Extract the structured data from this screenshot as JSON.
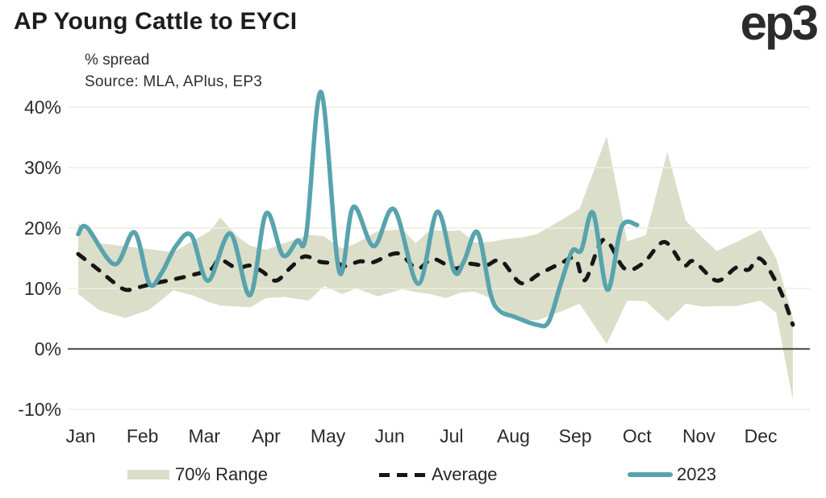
{
  "header": {
    "title": "AP Young Cattle to EYCI",
    "logo": "ep3"
  },
  "chart_data": {
    "type": "line",
    "title": "AP Young Cattle to EYCI",
    "subtitle": "% spread",
    "source": "Source: MLA, APlus, EP3",
    "legend_position": "bottom",
    "grid": true,
    "colors": {
      "band": "#dbdec9",
      "average": "#161616",
      "y2023": "#58a3ad",
      "gridline": "#efeee0",
      "zeroline": "#58585a"
    },
    "x_axis": {
      "categories": [
        "Jan",
        "Feb",
        "Mar",
        "Apr",
        "May",
        "Jun",
        "Jul",
        "Aug",
        "Sep",
        "Oct",
        "Nov",
        "Dec"
      ]
    },
    "y_axis": {
      "unit": "%",
      "min": -10,
      "max": 40,
      "tick_values": [
        40,
        30,
        20,
        10,
        0,
        -10
      ],
      "tick_labels": [
        "40%",
        "30%",
        "20%",
        "10%",
        "0%",
        "-10%"
      ]
    },
    "legend": [
      {
        "label": "70% Range",
        "type": "band"
      },
      {
        "label": "Average",
        "type": "dashed-line"
      },
      {
        "label": "2023",
        "type": "line"
      }
    ],
    "series": [
      {
        "name": "70% Range",
        "type": "band",
        "unit_x": "months (0 = Jan)",
        "points": [
          {
            "x": -0.04,
            "low": 9.1,
            "high": 20.8
          },
          {
            "x": 0.3,
            "low": 6.4,
            "high": 17.5
          },
          {
            "x": 0.72,
            "low": 5.1,
            "high": 17.0
          },
          {
            "x": 1.11,
            "low": 6.5,
            "high": 16.5
          },
          {
            "x": 1.5,
            "low": 9.7,
            "high": 16.0
          },
          {
            "x": 1.83,
            "low": 8.8,
            "high": 18.0
          },
          {
            "x": 2.09,
            "low": 7.7,
            "high": 19.5
          },
          {
            "x": 2.26,
            "low": 7.2,
            "high": 21.7
          },
          {
            "x": 2.55,
            "low": 7.0,
            "high": 18.5
          },
          {
            "x": 2.74,
            "low": 6.9,
            "high": 17.1
          },
          {
            "x": 3.0,
            "low": 8.4,
            "high": 16.4
          },
          {
            "x": 3.29,
            "low": 8.6,
            "high": 17.5
          },
          {
            "x": 3.69,
            "low": 8.0,
            "high": 18.9
          },
          {
            "x": 3.94,
            "low": 10.4,
            "high": 18.6
          },
          {
            "x": 4.23,
            "low": 9.1,
            "high": 16.6
          },
          {
            "x": 4.46,
            "low": 10.0,
            "high": 17.5
          },
          {
            "x": 4.81,
            "low": 8.7,
            "high": 19.5
          },
          {
            "x": 5.2,
            "low": 9.9,
            "high": 19.8
          },
          {
            "x": 5.42,
            "low": 9.4,
            "high": 17.5
          },
          {
            "x": 5.65,
            "low": 9.1,
            "high": 19.7
          },
          {
            "x": 5.91,
            "low": 8.4,
            "high": 19.5
          },
          {
            "x": 6.14,
            "low": 9.3,
            "high": 19.6
          },
          {
            "x": 6.37,
            "low": 9.5,
            "high": 17.6
          },
          {
            "x": 6.63,
            "low": 8.4,
            "high": 17.7
          },
          {
            "x": 6.89,
            "low": 6.0,
            "high": 18.2
          },
          {
            "x": 7.12,
            "low": 4.9,
            "high": 18.4
          },
          {
            "x": 7.38,
            "low": 4.7,
            "high": 19.0
          },
          {
            "x": 7.77,
            "low": 6.2,
            "high": 21.3
          },
          {
            "x": 8.07,
            "low": 7.5,
            "high": 23.2
          },
          {
            "x": 8.51,
            "low": 0.8,
            "high": 35.2
          },
          {
            "x": 8.84,
            "low": 8.0,
            "high": 17.8
          },
          {
            "x": 9.14,
            "low": 7.9,
            "high": 18.8
          },
          {
            "x": 9.49,
            "low": 4.6,
            "high": 32.6
          },
          {
            "x": 9.79,
            "low": 7.5,
            "high": 21.2
          },
          {
            "x": 10.05,
            "low": 7.0,
            "high": 18.5
          },
          {
            "x": 10.29,
            "low": 7.1,
            "high": 16.2
          },
          {
            "x": 10.61,
            "low": 7.1,
            "high": 17.7
          },
          {
            "x": 11.0,
            "low": 8.0,
            "high": 19.7
          },
          {
            "x": 11.25,
            "low": 6.0,
            "high": 15.0
          },
          {
            "x": 11.52,
            "low": -8.5,
            "high": 5.3
          }
        ]
      },
      {
        "name": "Average",
        "type": "line",
        "style": "dashed",
        "unit_x": "months (0 = Jan)",
        "points": [
          [
            -0.04,
            15.7
          ],
          [
            0.29,
            13.1
          ],
          [
            0.5,
            11.3
          ],
          [
            0.72,
            9.8
          ],
          [
            0.94,
            10.2
          ],
          [
            1.17,
            10.8
          ],
          [
            1.5,
            11.5
          ],
          [
            1.83,
            12.3
          ],
          [
            2.11,
            13.2
          ],
          [
            2.25,
            14.8
          ],
          [
            2.52,
            13.4
          ],
          [
            2.74,
            13.8
          ],
          [
            2.94,
            12.8
          ],
          [
            3.16,
            11.3
          ],
          [
            3.4,
            13.5
          ],
          [
            3.62,
            15.3
          ],
          [
            3.88,
            14.4
          ],
          [
            4.14,
            14.2
          ],
          [
            4.28,
            13.7
          ],
          [
            4.52,
            14.5
          ],
          [
            4.72,
            14.3
          ],
          [
            5.13,
            15.8
          ],
          [
            5.44,
            13.3
          ],
          [
            5.7,
            14.9
          ],
          [
            6.04,
            13.3
          ],
          [
            6.27,
            14.1
          ],
          [
            6.55,
            13.8
          ],
          [
            6.8,
            14.6
          ],
          [
            7.12,
            10.9
          ],
          [
            7.42,
            12.4
          ],
          [
            7.77,
            14.2
          ],
          [
            8.0,
            15.0
          ],
          [
            8.16,
            11.4
          ],
          [
            8.46,
            18.1
          ],
          [
            8.8,
            13.3
          ],
          [
            9.1,
            14.2
          ],
          [
            9.44,
            17.7
          ],
          [
            9.75,
            13.9
          ],
          [
            9.92,
            14.5
          ],
          [
            10.29,
            11.3
          ],
          [
            10.61,
            13.5
          ],
          [
            10.8,
            13.1
          ],
          [
            11.0,
            14.9
          ],
          [
            11.31,
            9.8
          ],
          [
            11.52,
            4.0
          ]
        ]
      },
      {
        "name": "2023",
        "type": "line",
        "style": "solid",
        "unit_x": "months (0 = Jan)",
        "points": [
          [
            -0.04,
            19.0
          ],
          [
            0.1,
            20.1
          ],
          [
            0.55,
            14.0
          ],
          [
            0.87,
            19.3
          ],
          [
            1.11,
            10.8
          ],
          [
            1.31,
            12.6
          ],
          [
            1.54,
            17.0
          ],
          [
            1.79,
            18.8
          ],
          [
            2.06,
            11.3
          ],
          [
            2.42,
            19.1
          ],
          [
            2.74,
            8.9
          ],
          [
            3.0,
            22.4
          ],
          [
            3.27,
            15.5
          ],
          [
            3.5,
            17.9
          ],
          [
            3.65,
            19.0
          ],
          [
            3.89,
            42.5
          ],
          [
            4.18,
            12.9
          ],
          [
            4.41,
            23.5
          ],
          [
            4.74,
            17.0
          ],
          [
            5.07,
            23.1
          ],
          [
            5.46,
            10.8
          ],
          [
            5.77,
            22.7
          ],
          [
            6.04,
            12.9
          ],
          [
            6.2,
            14.5
          ],
          [
            6.42,
            19.3
          ],
          [
            6.63,
            9.1
          ],
          [
            6.78,
            6.3
          ],
          [
            7.02,
            5.3
          ],
          [
            7.38,
            4.0
          ],
          [
            7.57,
            4.5
          ],
          [
            7.77,
            10.9
          ],
          [
            7.95,
            16.2
          ],
          [
            8.1,
            16.4
          ],
          [
            8.29,
            22.5
          ],
          [
            8.52,
            9.8
          ],
          [
            8.75,
            20.2
          ],
          [
            9.0,
            20.5
          ]
        ]
      }
    ]
  }
}
